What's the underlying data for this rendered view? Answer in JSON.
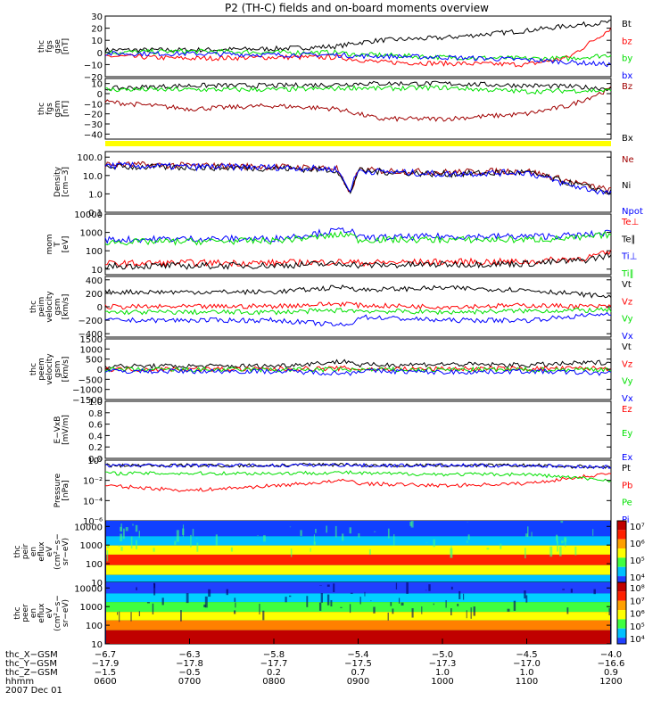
{
  "title": "P2 (TH-C) fields and on-board moments overview",
  "colors": {
    "black": "#000000",
    "red": "#ff0000",
    "green": "#00e000",
    "blue": "#0000ff",
    "darkred": "#a00000",
    "yellow": "#ffff00"
  },
  "chart_data": [
    {
      "type": "line",
      "id": "fgs_gse",
      "ylabel": [
        "thc",
        "fgs",
        "gse",
        "[nT]"
      ],
      "ylim": [
        -20,
        30
      ],
      "tick_labels": [
        "30",
        "20",
        "10",
        "0",
        "−10",
        "−20"
      ],
      "legend_placement": "right",
      "series": [
        {
          "name": "Bt",
          "color": "black",
          "x": [
            "0600",
            "0700",
            "0800",
            "0845",
            "0900",
            "0915",
            "1000",
            "1100",
            "1130",
            "1200"
          ],
          "y": [
            2,
            2,
            3,
            5,
            8,
            10,
            12,
            18,
            22,
            25
          ]
        },
        {
          "name": "bz",
          "color": "red",
          "x": [
            "0600",
            "0700",
            "0800",
            "0845",
            "0900",
            "0915",
            "1000",
            "1100",
            "1130",
            "1200"
          ],
          "y": [
            -3,
            -5,
            -4,
            -4,
            -6,
            -8,
            -9,
            -10,
            -4,
            20
          ]
        },
        {
          "name": "by",
          "color": "green",
          "x": [
            "0600",
            "0700",
            "0800",
            "0845",
            "0900",
            "0915",
            "1000",
            "1100",
            "1130",
            "1200"
          ],
          "y": [
            0,
            1,
            0,
            0,
            -2,
            -2,
            -4,
            -5,
            -5,
            -2
          ]
        },
        {
          "name": "bx",
          "color": "blue",
          "x": [
            "0600",
            "0700",
            "0800",
            "0845",
            "0900",
            "0915",
            "1000",
            "1100",
            "1130",
            "1200"
          ],
          "y": [
            -1,
            -1,
            -2,
            -2,
            -3,
            -3,
            -4,
            -6,
            -8,
            -10
          ]
        }
      ]
    },
    {
      "type": "line",
      "id": "fgs_gsm",
      "ylabel": [
        "thc",
        "fgs",
        "gsm",
        "[nT]"
      ],
      "ylim": [
        -45,
        15
      ],
      "tick_labels": [
        "10",
        "0",
        "−10",
        "−20",
        "−30",
        "−40"
      ],
      "legend_placement": "right",
      "series": [
        {
          "name": "Bz",
          "color": "darkred",
          "x": [
            "0600",
            "0700",
            "0800",
            "0845",
            "0900",
            "0915",
            "1000",
            "1100",
            "1130",
            "1200"
          ],
          "y": [
            -8,
            -15,
            -12,
            -15,
            -20,
            -25,
            -25,
            -20,
            -12,
            5
          ]
        },
        {
          "name": "Bx",
          "color": "black",
          "x": [
            "0600",
            "0700",
            "0800",
            "0845",
            "0900",
            "0915",
            "1000",
            "1100",
            "1130",
            "1200"
          ],
          "y": [
            5,
            8,
            8,
            9,
            10,
            10,
            10,
            8,
            7,
            5
          ]
        },
        {
          "name": "",
          "color": "green",
          "x": [
            "0600",
            "0700",
            "0800",
            "0845",
            "0900",
            "0915",
            "1000",
            "1100",
            "1130",
            "1200"
          ],
          "y": [
            4,
            4,
            4,
            5,
            6,
            5,
            6,
            2,
            3,
            3
          ]
        }
      ]
    },
    {
      "type": "line",
      "id": "density",
      "ylabel": [
        "Density",
        "[cm−3]"
      ],
      "log": true,
      "ylim": [
        0.1,
        200
      ],
      "tick_labels": [
        "100.0",
        "10.0",
        "1.0",
        "0.1"
      ],
      "legend_placement": "right",
      "series": [
        {
          "name": "Ne",
          "color": "darkred",
          "x": [
            "0600",
            "0700",
            "0800",
            "0845",
            "0854",
            "0900",
            "1000",
            "1100",
            "1130",
            "1200"
          ],
          "y": [
            40,
            35,
            30,
            25,
            0.8,
            20,
            15,
            18,
            5,
            1.5
          ]
        },
        {
          "name": "Ni",
          "color": "black",
          "x": [
            "0600",
            "0700",
            "0800",
            "0845",
            "0854",
            "0900",
            "1000",
            "1100",
            "1130",
            "1200"
          ],
          "y": [
            30,
            28,
            25,
            20,
            1,
            18,
            12,
            15,
            4,
            1.2
          ]
        },
        {
          "name": "Npot",
          "color": "blue",
          "x": [
            "0600",
            "0700",
            "0800",
            "0845",
            "0854",
            "0900",
            "1000",
            "1100",
            "1130",
            "1200"
          ],
          "y": [
            35,
            30,
            28,
            22,
            1.5,
            18,
            12,
            15,
            3,
            1
          ]
        }
      ]
    },
    {
      "type": "line",
      "id": "temperature",
      "ylabel": [
        "mom",
        "T",
        "[eV]"
      ],
      "log": true,
      "ylim": [
        5,
        10000
      ],
      "tick_labels": [
        "10000",
        "1000",
        "100",
        "10"
      ],
      "legend_placement": "right",
      "series": [
        {
          "name": "Te⊥",
          "color": "red",
          "x": [
            "0600",
            "0700",
            "0800",
            "0854",
            "0900",
            "1000",
            "1100",
            "1140",
            "1200"
          ],
          "y": [
            20,
            22,
            22,
            25,
            22,
            25,
            25,
            40,
            80
          ]
        },
        {
          "name": "Te∥",
          "color": "black",
          "x": [
            "0600",
            "0700",
            "0800",
            "0854",
            "0900",
            "1000",
            "1100",
            "1140",
            "1200"
          ],
          "y": [
            15,
            15,
            16,
            20,
            16,
            18,
            20,
            30,
            60
          ]
        },
        {
          "name": "Ti⊥",
          "color": "blue",
          "x": [
            "0600",
            "0700",
            "0800",
            "0854",
            "0900",
            "1000",
            "1100",
            "1140",
            "1200"
          ],
          "y": [
            400,
            450,
            450,
            1500,
            500,
            600,
            600,
            700,
            1000
          ]
        },
        {
          "name": "Ti∥",
          "color": "green",
          "x": [
            "0600",
            "0700",
            "0800",
            "0854",
            "0900",
            "1000",
            "1100",
            "1140",
            "1200"
          ],
          "y": [
            300,
            320,
            350,
            800,
            400,
            400,
            400,
            500,
            800
          ]
        }
      ]
    },
    {
      "type": "line",
      "id": "peim_velocity",
      "ylabel": [
        "thc",
        "peim",
        "velocity",
        "gsm",
        "[km/s]"
      ],
      "ylim": [
        -450,
        450
      ],
      "tick_labels": [
        "400",
        "200",
        "0",
        "−200",
        "−400"
      ],
      "legend_placement": "right",
      "series": [
        {
          "name": "Vt",
          "color": "black",
          "x": [
            "0600",
            "0700",
            "0800",
            "0854",
            "0900",
            "1000",
            "1100",
            "1200"
          ],
          "y": [
            220,
            220,
            220,
            300,
            250,
            280,
            250,
            150
          ]
        },
        {
          "name": "Vz",
          "color": "red",
          "x": [
            "0600",
            "0700",
            "0800",
            "0854",
            "0900",
            "1000",
            "1100",
            "1200"
          ],
          "y": [
            0,
            0,
            10,
            50,
            20,
            0,
            20,
            0
          ]
        },
        {
          "name": "Vy",
          "color": "green",
          "x": [
            "0600",
            "0700",
            "0800",
            "0854",
            "0900",
            "1000",
            "1100",
            "1200"
          ],
          "y": [
            -80,
            -80,
            -80,
            -50,
            -60,
            -80,
            -60,
            -50
          ]
        },
        {
          "name": "Vx",
          "color": "blue",
          "x": [
            "0600",
            "0700",
            "0800",
            "0854",
            "0900",
            "1000",
            "1100",
            "1200"
          ],
          "y": [
            -200,
            -200,
            -200,
            -280,
            -150,
            -200,
            -200,
            -100
          ]
        }
      ]
    },
    {
      "type": "line",
      "id": "peem_velocity",
      "ylabel": [
        "thc",
        "peem",
        "velocity",
        "gsm",
        "[km/s]"
      ],
      "ylim": [
        -1500,
        1500
      ],
      "tick_labels": [
        "1500",
        "1000",
        "500",
        "0",
        "−500",
        "−1000",
        "−1500"
      ],
      "legend_placement": "right",
      "series": [
        {
          "name": "Vt",
          "color": "black",
          "x": [
            "0600",
            "0700",
            "0800",
            "0854",
            "0900",
            "1000",
            "1100",
            "1200"
          ],
          "y": [
            150,
            150,
            160,
            400,
            200,
            250,
            200,
            350
          ]
        },
        {
          "name": "Vz",
          "color": "red",
          "x": [
            "0600",
            "0700",
            "0800",
            "0854",
            "0900",
            "1000",
            "1100",
            "1200"
          ],
          "y": [
            0,
            0,
            0,
            50,
            0,
            20,
            20,
            50
          ]
        },
        {
          "name": "Vy",
          "color": "green",
          "x": [
            "0600",
            "0700",
            "0800",
            "0854",
            "0900",
            "1000",
            "1100",
            "1200"
          ],
          "y": [
            -30,
            -30,
            -30,
            -20,
            -30,
            -30,
            -30,
            0
          ]
        },
        {
          "name": "Vx",
          "color": "blue",
          "x": [
            "0600",
            "0700",
            "0800",
            "0854",
            "0900",
            "1000",
            "1100",
            "1200"
          ],
          "y": [
            -100,
            -100,
            -100,
            -200,
            -80,
            -150,
            -100,
            -200
          ]
        }
      ]
    },
    {
      "type": "line",
      "id": "e_vxb",
      "ylabel": [
        "E−VxB",
        "[mV/m]"
      ],
      "ylim": [
        0,
        1
      ],
      "tick_labels": [
        "1.0",
        "0.8",
        "0.6",
        "0.4",
        "0.2",
        "0.0"
      ],
      "legend_placement": "right",
      "series": [
        {
          "name": "Ez",
          "color": "red",
          "x": [],
          "y": []
        },
        {
          "name": "Ey",
          "color": "green",
          "x": [],
          "y": []
        },
        {
          "name": "Ex",
          "color": "blue",
          "x": [],
          "y": []
        }
      ]
    },
    {
      "type": "line",
      "id": "pressure",
      "ylabel": [
        "Pressure",
        "[nPa]"
      ],
      "log": true,
      "ylim": [
        1e-06,
        1
      ],
      "tick_labels": [
        "10⁰",
        "10⁻²",
        "10⁻⁴",
        "10⁻⁶"
      ],
      "legend_placement": "right",
      "series": [
        {
          "name": "Pt",
          "color": "black",
          "x": [
            "0600",
            "0700",
            "0800",
            "0854",
            "0900",
            "1000",
            "1100",
            "1200"
          ],
          "y": [
            0.3,
            0.3,
            0.3,
            0.4,
            0.3,
            0.3,
            0.3,
            0.2
          ]
        },
        {
          "name": "Pb",
          "color": "red",
          "x": [
            "0600",
            "0700",
            "0800",
            "0854",
            "0900",
            "1000",
            "1100",
            "1200"
          ],
          "y": [
            0.003,
            0.001,
            0.003,
            0.01,
            0.005,
            0.003,
            0.005,
            0.05
          ]
        },
        {
          "name": "Pe",
          "color": "green",
          "x": [
            "0600",
            "0700",
            "0800",
            "0854",
            "0900",
            "1000",
            "1100",
            "1200"
          ],
          "y": [
            0.05,
            0.05,
            0.05,
            0.06,
            0.05,
            0.04,
            0.04,
            0.01
          ]
        },
        {
          "name": "Pi",
          "color": "blue",
          "x": [
            "0600",
            "0700",
            "0800",
            "0854",
            "0900",
            "1000",
            "1100",
            "1200"
          ],
          "y": [
            0.3,
            0.3,
            0.3,
            0.35,
            0.3,
            0.3,
            0.3,
            0.2
          ]
        }
      ]
    },
    {
      "type": "heatmap",
      "id": "peir_eflux",
      "ylabel": [
        "thc",
        "peir",
        "en",
        "eflux",
        "eV",
        "(cm²−s−",
        "sr−eV)"
      ],
      "log": true,
      "ylim": [
        10,
        20000
      ],
      "tick_labels": [
        "10000",
        "1000",
        "100",
        "10"
      ],
      "colorbar_ticks": [
        "10⁷",
        "10⁶",
        "10⁵",
        "10⁴"
      ]
    },
    {
      "type": "heatmap",
      "id": "peer_eflux",
      "ylabel": [
        "thc",
        "peer",
        "en",
        "eflux",
        "eV",
        "(cm²−s−",
        "sr−eV)"
      ],
      "log": true,
      "ylim": [
        10,
        20000
      ],
      "tick_labels": [
        "10000",
        "1000",
        "100",
        "10"
      ],
      "colorbar_ticks": [
        "10⁸",
        "10⁷",
        "10⁶",
        "10⁵",
        "10⁴"
      ]
    }
  ],
  "xaxis": {
    "rows": [
      {
        "label": "thc_X−GSM",
        "values": [
          "−6.7",
          "−6.3",
          "−5.8",
          "−5.4",
          "−5.0",
          "−4.5",
          "−4.0"
        ]
      },
      {
        "label": "thc_Y−GSM",
        "values": [
          "−17.9",
          "−17.8",
          "−17.7",
          "−17.5",
          "−17.3",
          "−17.0",
          "−16.6"
        ]
      },
      {
        "label": "thc_Z−GSM",
        "values": [
          "−1.5",
          "−0.5",
          "0.2",
          "0.7",
          "1.0",
          "1.0",
          "0.9"
        ]
      },
      {
        "label": "hhmm",
        "values": [
          "0600",
          "0700",
          "0800",
          "0900",
          "1000",
          "1100",
          "1200"
        ]
      }
    ],
    "date": "2007 Dec 01"
  }
}
